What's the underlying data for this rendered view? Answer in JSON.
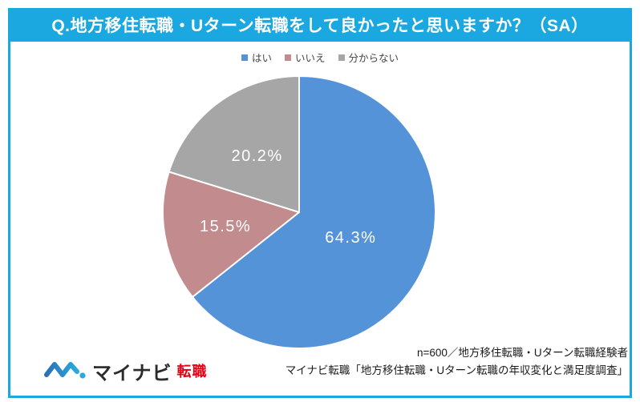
{
  "header": {
    "title": "Q.地方移住転職・Uターン転職をして良かったと思いますか？（SA）",
    "bg_color": "#1BA7E0",
    "text_color": "#FFFFFF"
  },
  "frame": {
    "border_color": "#1BA7E0",
    "bg_color": "#FFFFFF"
  },
  "legend": {
    "items": [
      {
        "label": "はい",
        "color": "#5593D8"
      },
      {
        "label": "いいえ",
        "color": "#C28B8E"
      },
      {
        "label": "分からない",
        "color": "#A6A6A6"
      }
    ]
  },
  "chart_data": {
    "type": "pie",
    "title": "Q.地方移住転職・Uターン転職をして良かったと思いますか？（SA）",
    "categories": [
      "はい",
      "いいえ",
      "分からない"
    ],
    "values": [
      64.3,
      15.5,
      20.2
    ],
    "unit": "%",
    "series": [
      {
        "name": "はい",
        "value": 64.3,
        "label": "64.3%",
        "color": "#5593D8",
        "label_radius_frac": 0.42
      },
      {
        "name": "いいえ",
        "value": 15.5,
        "label": "15.5%",
        "color": "#C28B8E",
        "label_radius_frac": 0.55
      },
      {
        "name": "分からない",
        "value": 20.2,
        "label": "20.2%",
        "color": "#A6A6A6",
        "label_radius_frac": 0.52
      }
    ],
    "start_angle_deg": 0,
    "direction": "clockwise",
    "legend_position": "top",
    "label_color": "#FFFFFF",
    "slice_border_color": "#FFFFFF"
  },
  "footer": {
    "note_line1": "n=600／地方移住転職・Uターン転職経験者",
    "note_line2": "マイナビ転職「地方移住転職・Uターン転職の年収変化と満足度調査」",
    "logo": {
      "brand_text": "マイナビ",
      "service_text": "転職",
      "brand_color": "#2B2B2B",
      "service_color": "#E60012",
      "mark_colors": [
        "#2D6FB7",
        "#29A9E0"
      ]
    }
  }
}
